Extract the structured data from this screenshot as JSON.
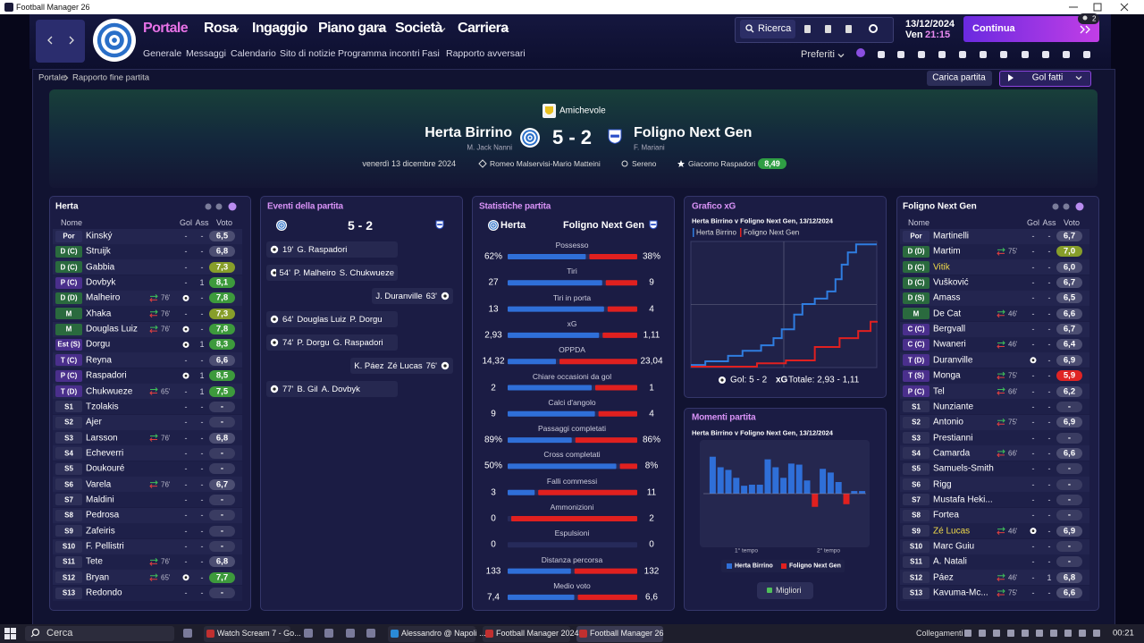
{
  "window": {
    "title": "Football Manager 26"
  },
  "nav": {
    "main": [
      "Portale",
      "Rosa",
      "Ingaggio",
      "Piano gara",
      "Società",
      "Carriera"
    ],
    "sub": [
      "Generale",
      "Messaggi",
      "Calendario",
      "Sito di notizie",
      "Programma incontri",
      "Fasi",
      "Rapporto avversari"
    ],
    "search": "Ricerca",
    "date": "13/12/2024",
    "weekday": "Ven",
    "time": "21:15",
    "continue": "Continua",
    "inbox_badge": "2",
    "favorites": "Preferiti"
  },
  "breadcrumb": [
    "Portale",
    "Rapporto fine partita"
  ],
  "actions": {
    "load": "Carica partita",
    "highlights": "Gol fatti"
  },
  "match": {
    "competition": "Amichevole",
    "home": "Herta Birrino",
    "home_manager": "M. Jack Nanni",
    "score": "5 - 2",
    "away": "Foligno Next Gen",
    "away_manager": "F. Mariani",
    "date": "venerdì 13 dicembre 2024",
    "referees": "Romeo Malservisi-Mario Matteini",
    "weather": "Sereno",
    "player_of_match": "Giacomo Raspadori",
    "player_of_match_rating": "8,49"
  },
  "home_lineup": {
    "title": "Herta",
    "columns": [
      "Nome",
      "Gol",
      "Ass",
      "Voto"
    ],
    "rows": [
      {
        "pos": "Por",
        "name": "Kinský",
        "gol": "-",
        "ass": "-",
        "voto": "6,5"
      },
      {
        "pos": "D (C)",
        "name": "Struijk",
        "gol": "-",
        "ass": "-",
        "voto": "6,8"
      },
      {
        "pos": "D (C)",
        "name": "Gabbia",
        "gol": "-",
        "ass": "-",
        "voto": "7,3"
      },
      {
        "pos": "P (C)",
        "name": "Dovbyk",
        "gol": "-",
        "ass": "1",
        "voto": "8,1"
      },
      {
        "pos": "D (D)",
        "name": "Malheiro",
        "sub": "76'",
        "gol": null,
        "ass": "-",
        "voto": "7,8"
      },
      {
        "pos": "M",
        "name": "Xhaka",
        "sub": "76'",
        "gol": "-",
        "ass": "-",
        "voto": "7,3"
      },
      {
        "pos": "M",
        "name": "Douglas Luiz",
        "sub": "76'",
        "gol": null,
        "ass": "-",
        "voto": "7,8"
      },
      {
        "pos": "Est (S)",
        "name": "Dorgu",
        "gol": null,
        "ass": "1",
        "voto": "8,3"
      },
      {
        "pos": "T (C)",
        "name": "Reyna",
        "gol": "-",
        "ass": "-",
        "voto": "6,6"
      },
      {
        "pos": "P (C)",
        "name": "Raspadori",
        "gol": null,
        "ass": "1",
        "voto": "8,5"
      },
      {
        "pos": "T (D)",
        "name": "Chukwueze",
        "sub": "65'",
        "gol": "-",
        "ass": "1",
        "voto": "7,5"
      },
      {
        "pos": "S1",
        "name": "Tzolakis",
        "gol": "-",
        "ass": "-",
        "voto": "-"
      },
      {
        "pos": "S2",
        "name": "Ajer",
        "gol": "-",
        "ass": "-",
        "voto": "-"
      },
      {
        "pos": "S3",
        "name": "Larsson",
        "sub": "76'",
        "gol": "-",
        "ass": "-",
        "voto": "6,8"
      },
      {
        "pos": "S4",
        "name": "Echeverri",
        "gol": "-",
        "ass": "-",
        "voto": "-"
      },
      {
        "pos": "S5",
        "name": "Doukouré",
        "gol": "-",
        "ass": "-",
        "voto": "-"
      },
      {
        "pos": "S6",
        "name": "Varela",
        "sub": "76'",
        "gol": "-",
        "ass": "-",
        "voto": "6,7"
      },
      {
        "pos": "S7",
        "name": "Maldini",
        "gol": "-",
        "ass": "-",
        "voto": "-"
      },
      {
        "pos": "S8",
        "name": "Pedrosa",
        "gol": "-",
        "ass": "-",
        "voto": "-"
      },
      {
        "pos": "S9",
        "name": "Zafeiris",
        "gol": "-",
        "ass": "-",
        "voto": "-"
      },
      {
        "pos": "S10",
        "name": "F. Pellistri",
        "gol": "-",
        "ass": "-",
        "voto": "-"
      },
      {
        "pos": "S11",
        "name": "Tete",
        "sub": "76'",
        "gol": "-",
        "ass": "-",
        "voto": "6,8"
      },
      {
        "pos": "S12",
        "name": "Bryan",
        "sub": "65'",
        "gol": null,
        "ass": "-",
        "voto": "7,7"
      },
      {
        "pos": "S13",
        "name": "Redondo",
        "gol": "-",
        "ass": "-",
        "voto": "-"
      }
    ]
  },
  "away_lineup": {
    "title": "Foligno Next Gen",
    "columns": [
      "Nome",
      "Gol",
      "Ass",
      "Voto"
    ],
    "rows": [
      {
        "pos": "Por",
        "name": "Martinelli",
        "gol": "-",
        "ass": "-",
        "voto": "6,7"
      },
      {
        "pos": "D (D)",
        "name": "Martim",
        "sub": "75'",
        "gol": "-",
        "ass": "-",
        "voto": "7,0"
      },
      {
        "pos": "D (C)",
        "name": "Vitik",
        "name_color": "#f2dc4a",
        "gol": "-",
        "ass": "-",
        "voto": "6,0"
      },
      {
        "pos": "D (C)",
        "name": "Vušković",
        "gol": "-",
        "ass": "-",
        "voto": "6,7"
      },
      {
        "pos": "D (S)",
        "name": "Amass",
        "gol": "-",
        "ass": "-",
        "voto": "6,5"
      },
      {
        "pos": "M",
        "name": "De Cat",
        "sub": "46'",
        "gol": "-",
        "ass": "-",
        "voto": "6,6"
      },
      {
        "pos": "C (C)",
        "name": "Bergvall",
        "gol": "-",
        "ass": "-",
        "voto": "6,7"
      },
      {
        "pos": "C (C)",
        "name": "Nwaneri",
        "sub": "46'",
        "gol": "-",
        "ass": "-",
        "voto": "6,4"
      },
      {
        "pos": "T (D)",
        "name": "Duranville",
        "gol": null,
        "ass": "-",
        "voto": "6,9"
      },
      {
        "pos": "T (S)",
        "name": "Monga",
        "sub": "75'",
        "gol": "-",
        "ass": "-",
        "voto": "5,9"
      },
      {
        "pos": "P (C)",
        "name": "Tel",
        "sub": "66'",
        "gol": "-",
        "ass": "-",
        "voto": "6,2"
      },
      {
        "pos": "S1",
        "name": "Nunziante",
        "gol": "-",
        "ass": "-",
        "voto": "-"
      },
      {
        "pos": "S2",
        "name": "Antonio",
        "sub": "75'",
        "gol": "-",
        "ass": "-",
        "voto": "6,9"
      },
      {
        "pos": "S3",
        "name": "Prestianni",
        "gol": "-",
        "ass": "-",
        "voto": "-"
      },
      {
        "pos": "S4",
        "name": "Camarda",
        "sub": "66'",
        "gol": "-",
        "ass": "-",
        "voto": "6,6"
      },
      {
        "pos": "S5",
        "name": "Samuels-Smith",
        "gol": "-",
        "ass": "-",
        "voto": "-"
      },
      {
        "pos": "S6",
        "name": "Rigg",
        "gol": "-",
        "ass": "-",
        "voto": "-"
      },
      {
        "pos": "S7",
        "name": "Mustafa Heki...",
        "gol": "-",
        "ass": "-",
        "voto": "-"
      },
      {
        "pos": "S8",
        "name": "Fortea",
        "gol": "-",
        "ass": "-",
        "voto": "-"
      },
      {
        "pos": "S9",
        "name": "Zé Lucas",
        "name_color": "#f2dc4a",
        "sub": "46'",
        "gol": null,
        "ass": "-",
        "voto": "6,9"
      },
      {
        "pos": "S10",
        "name": "Marc Guiu",
        "gol": "-",
        "ass": "-",
        "voto": "-"
      },
      {
        "pos": "S11",
        "name": "A. Natali",
        "gol": "-",
        "ass": "-",
        "voto": "-"
      },
      {
        "pos": "S12",
        "name": "Páez",
        "sub": "46'",
        "gol": "-",
        "ass": "1",
        "voto": "6,8"
      },
      {
        "pos": "S13",
        "name": "Kavuma-Mc...",
        "sub": "75'",
        "gol": "-",
        "ass": "-",
        "voto": "6,6"
      }
    ]
  },
  "events": {
    "title": "Eventi della partita",
    "score": "5 - 2",
    "items": [
      {
        "side": "home",
        "minute": "19'",
        "scorer": "G. Raspadori"
      },
      {
        "side": "home",
        "minute": "54'",
        "scorer": "P. Malheiro",
        "assist": "S. Chukwueze"
      },
      {
        "side": "away",
        "minute": "63'",
        "scorer": "J. Duranville"
      },
      {
        "side": "home",
        "minute": "64'",
        "scorer": "Douglas Luiz",
        "assist": "P. Dorgu"
      },
      {
        "side": "home",
        "minute": "74'",
        "scorer": "P. Dorgu",
        "assist": "G. Raspadori"
      },
      {
        "side": "away",
        "minute": "76'",
        "scorer": "K. Páez",
        "assist": "Zé Lucas"
      },
      {
        "side": "home",
        "minute": "77'",
        "scorer": "B. Gil",
        "assist": "A. Dovbyk"
      }
    ]
  },
  "stats": {
    "title": "Statistiche partita",
    "home": "Herta",
    "away": "Foligno Next Gen",
    "rows": [
      {
        "label": "Possesso",
        "home": "62%",
        "away": "38%"
      },
      {
        "label": "Tiri",
        "home": "27",
        "away": "9"
      },
      {
        "label": "Tiri in porta",
        "home": "13",
        "away": "4"
      },
      {
        "label": "xG",
        "home": "2,93",
        "away": "1,11"
      },
      {
        "label": "OPPDA",
        "home": "14,32",
        "away": "23,04"
      },
      {
        "label": "Chiare occasioni da gol",
        "home": "2",
        "away": "1"
      },
      {
        "label": "Calci d'angolo",
        "home": "9",
        "away": "4"
      },
      {
        "label": "Passaggi completati",
        "home": "89%",
        "away": "86%"
      },
      {
        "label": "Cross completati",
        "home": "50%",
        "away": "8%"
      },
      {
        "label": "Falli commessi",
        "home": "3",
        "away": "11"
      },
      {
        "label": "Ammonizioni",
        "home": "0",
        "away": "2"
      },
      {
        "label": "Espulsioni",
        "home": "0",
        "away": "0"
      },
      {
        "label": "Distanza percorsa",
        "home": "133",
        "away": "132"
      },
      {
        "label": "Medio voto",
        "home": "7,4",
        "away": "6,6"
      }
    ]
  },
  "xg_chart": {
    "type": "line",
    "title": "Grafico xG",
    "subtitle": "Herta Birrino v Foligno Next Gen, 13/12/2024",
    "xlim": [
      0,
      90
    ],
    "ylim": [
      0,
      3
    ],
    "step": true,
    "series": [
      {
        "name": "Herta Birrino",
        "color": "#2f7de0",
        "x": [
          0,
          7,
          18,
          25,
          34,
          40,
          44,
          50,
          54,
          60,
          66,
          70,
          73,
          76,
          80,
          90
        ],
        "y": [
          0.06,
          0.15,
          0.28,
          0.4,
          0.53,
          0.7,
          0.91,
          1.26,
          1.51,
          1.64,
          1.81,
          2.1,
          2.45,
          2.74,
          2.93,
          2.93
        ]
      },
      {
        "name": "Foligno Next Gen",
        "color": "#e02020",
        "x": [
          0,
          32,
          46,
          60,
          72,
          81,
          87,
          90
        ],
        "y": [
          0.02,
          0.1,
          0.17,
          0.49,
          0.7,
          0.87,
          1.09,
          1.11
        ]
      }
    ],
    "goals_label": "Gol: 5 - 2",
    "total_label": "xG",
    "total": "Totale: 2,93 - 1,11"
  },
  "momentum_chart": {
    "type": "bar",
    "title": "Momenti partita",
    "subtitle": "Herta Birrino v Foligno Next Gen, 13/12/2024",
    "ylim": [
      -10,
      10
    ],
    "values": [
      7,
      5,
      4.5,
      3,
      1.5,
      1.7,
      1.7,
      6.5,
      5,
      3,
      5.7,
      5.5,
      2.5,
      -2.5,
      4.7,
      4,
      2.2,
      -2,
      0.5,
      0.5
    ],
    "halves": [
      "1° tempo",
      "2° tempo"
    ],
    "legend": [
      {
        "name": "Herta Birrino",
        "color": "#2f6fd8"
      },
      {
        "name": "Foligno Next Gen",
        "color": "#e0201f"
      }
    ],
    "button": "Migliori"
  },
  "taskbar": {
    "search": "Cerca",
    "items": [
      "Watch Scream 7 - Go...",
      "Alessandro @ Napoli ...",
      "Football Manager 2024",
      "Football Manager 26"
    ],
    "tray_label": "Collegamenti",
    "clock": "00:21"
  }
}
